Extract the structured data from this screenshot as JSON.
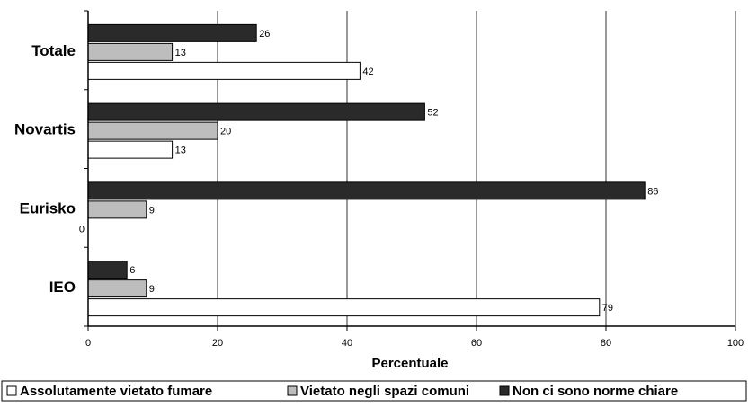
{
  "chart_data": {
    "type": "bar",
    "orientation": "horizontal",
    "categories": [
      "Totale",
      "Novartis",
      "Eurisko",
      "IEO"
    ],
    "series": [
      {
        "name": "Non ci sono norme chiare",
        "color": "#2a2a2a",
        "values": [
          26,
          52,
          86,
          6
        ]
      },
      {
        "name": "Vietato negli spazi comuni",
        "color": "#bdbdbd",
        "values": [
          13,
          20,
          9,
          9
        ]
      },
      {
        "name": "Assolutamente vietato fumare",
        "color": "#ffffff",
        "values": [
          42,
          13,
          0,
          79
        ]
      }
    ],
    "xlabel": "Percentuale",
    "xlim": [
      0,
      100
    ],
    "xticks": [
      "0",
      "20",
      "40",
      "60",
      "80",
      "100"
    ],
    "grid": "vertical",
    "legend": {
      "position": "bottom",
      "order": [
        "Assolutamente vietato fumare",
        "Vietato negli spazi comuni",
        "Non ci sono norme chiare"
      ]
    }
  }
}
